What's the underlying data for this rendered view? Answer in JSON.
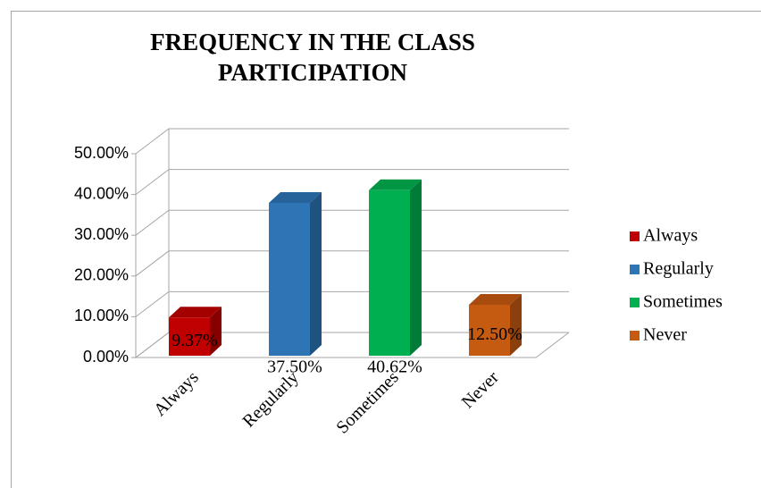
{
  "chart_data": {
    "type": "bar3d",
    "title": "FREQUENCY IN THE CLASS PARTICIPATION",
    "categories": [
      "Always",
      "Regularly",
      "Sometimes",
      "Never"
    ],
    "values": [
      9.37,
      37.5,
      40.62,
      12.5
    ],
    "value_labels": [
      "9.37%",
      "37.50%",
      "40.62%",
      "12.50%"
    ],
    "colors": [
      "#c00000",
      "#2e75b6",
      "#00b050",
      "#c55a11"
    ],
    "ylim": [
      0,
      50
    ],
    "yticks": [
      {
        "value": 0,
        "label": "0.00%"
      },
      {
        "value": 10,
        "label": "10.00%"
      },
      {
        "value": 20,
        "label": "20.00%"
      },
      {
        "value": 30,
        "label": "30.00%"
      },
      {
        "value": 40,
        "label": "40.00%"
      },
      {
        "value": 50,
        "label": "50.00%"
      }
    ],
    "grid": true,
    "legend": "right"
  }
}
